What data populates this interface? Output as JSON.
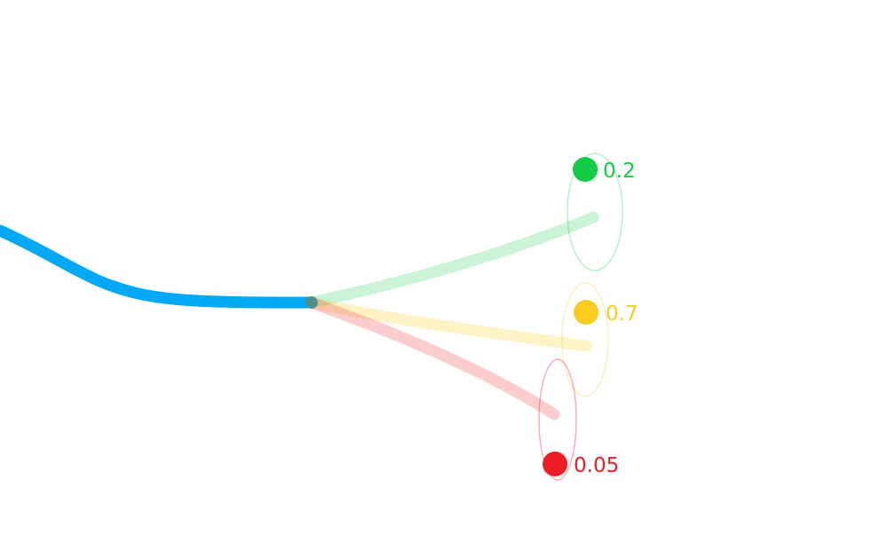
{
  "colors": {
    "history": "#03a9f4",
    "green": "#11cc44",
    "yellow": "#fccb1f",
    "red": "#ee1c24"
  },
  "branches": [
    {
      "id": "green",
      "probability_label": "0.2",
      "color": "#11cc44",
      "icon": "circle-marker"
    },
    {
      "id": "yellow",
      "probability_label": "0.7",
      "color": "#fccb1f",
      "icon": "circle-marker"
    },
    {
      "id": "red",
      "probability_label": "0.05",
      "color": "#ee1c24",
      "icon": "circle-marker"
    }
  ]
}
